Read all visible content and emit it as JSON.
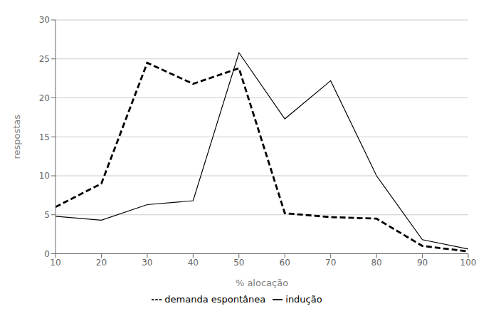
{
  "chart_data": {
    "type": "line",
    "x": [
      10,
      20,
      30,
      40,
      50,
      60,
      70,
      80,
      90,
      100
    ],
    "series": [
      {
        "name": "indução",
        "color": "#000000",
        "line_style": "solid",
        "values": [
          4.8,
          4.3,
          6.3,
          6.8,
          25.8,
          17.3,
          22.2,
          10.0,
          1.8,
          0.6
        ]
      },
      {
        "name": "demanda espontânea",
        "color": "#000000",
        "line_style": "dashed",
        "values": [
          6.0,
          9.0,
          24.5,
          21.8,
          23.8,
          5.2,
          4.7,
          4.5,
          1.0,
          0.3
        ]
      }
    ],
    "xlabel": "% alocação",
    "ylabel": "respostas",
    "xlim": [
      10,
      100
    ],
    "ylim": [
      0,
      30
    ],
    "xticks": [
      10,
      20,
      30,
      40,
      50,
      60,
      70,
      80,
      90,
      100
    ],
    "yticks": [
      0,
      5,
      10,
      15,
      20,
      25,
      30
    ],
    "grid": "y",
    "legend": "bottom"
  }
}
